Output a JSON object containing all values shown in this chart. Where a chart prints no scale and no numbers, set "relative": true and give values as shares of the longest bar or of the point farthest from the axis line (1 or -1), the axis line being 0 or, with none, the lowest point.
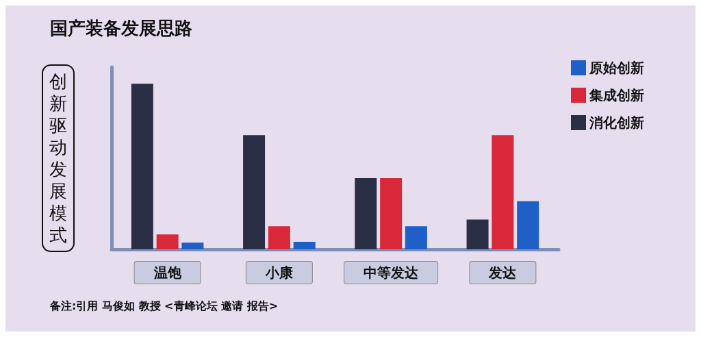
{
  "chart_data": {
    "type": "bar",
    "title": "国产装备发展思路",
    "ylabel": "创新驱动发展模式",
    "categories": [
      "温饱",
      "小康",
      "中等发达",
      "发达"
    ],
    "relative": true,
    "legend": "top right",
    "series": [
      {
        "name": "消化创新",
        "color": "#2b2f45",
        "values": [
          1,
          0.69,
          0.43,
          0.18
        ]
      },
      {
        "name": "集成创新",
        "color": "#d8283a",
        "values": [
          0.09,
          0.14,
          0.43,
          0.69
        ]
      },
      {
        "name": "原始创新",
        "color": "#1f5fc8",
        "values": [
          0.04,
          0.045,
          0.14,
          0.29
        ]
      }
    ],
    "annotations": [
      "备注:引用 马俊如 教授 <青峰论坛 邀请 报告>"
    ]
  }
}
